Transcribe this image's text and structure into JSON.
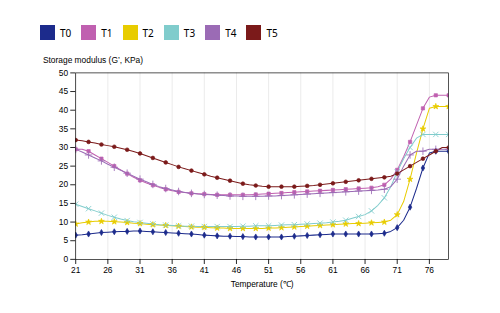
{
  "chart_data": {
    "type": "line",
    "xlabel": "Temperature (℃)",
    "ylabel": "Storage modulus (G’, KPa)",
    "xlim": [
      21,
      79
    ],
    "ylim": [
      0,
      50
    ],
    "xticks": [
      21,
      26,
      31,
      36,
      41,
      46,
      51,
      56,
      61,
      66,
      71,
      76
    ],
    "yticks": [
      0,
      5,
      10,
      15,
      20,
      25,
      30,
      35,
      40,
      45,
      50
    ],
    "grid": "x",
    "legend": "upper left",
    "x": [
      21,
      22,
      23,
      24,
      25,
      26,
      27,
      28,
      29,
      30,
      31,
      32,
      33,
      34,
      35,
      36,
      37,
      38,
      39,
      40,
      41,
      42,
      43,
      44,
      45,
      46,
      47,
      48,
      49,
      50,
      51,
      52,
      53,
      54,
      55,
      56,
      57,
      58,
      59,
      60,
      61,
      62,
      63,
      64,
      65,
      66,
      67,
      68,
      69,
      70,
      71,
      72,
      73,
      74,
      75,
      76,
      77,
      78,
      79
    ],
    "series": [
      {
        "name": "T0",
        "color": "#1C2B8C",
        "marker": "diamond",
        "values": [
          6.5,
          6.6,
          6.8,
          7.0,
          7.2,
          7.3,
          7.4,
          7.5,
          7.5,
          7.6,
          7.6,
          7.5,
          7.4,
          7.3,
          7.2,
          7.1,
          7.0,
          6.9,
          6.8,
          6.7,
          6.5,
          6.4,
          6.3,
          6.2,
          6.2,
          6.1,
          6.1,
          6.0,
          6.0,
          6.0,
          6.0,
          6.0,
          6.0,
          6.1,
          6.2,
          6.3,
          6.4,
          6.5,
          6.6,
          6.7,
          6.8,
          6.8,
          6.8,
          6.8,
          6.8,
          6.8,
          6.8,
          6.9,
          7.0,
          7.5,
          8.5,
          10.5,
          14.0,
          19.0,
          24.5,
          28.5,
          29.0,
          29.0,
          29.0
        ]
      },
      {
        "name": "T1",
        "color": "#C060B0",
        "marker": "square",
        "values": [
          29.5,
          29.5,
          29.0,
          28.0,
          27.0,
          26.0,
          25.0,
          24.0,
          23.0,
          22.0,
          21.2,
          20.5,
          19.9,
          19.3,
          18.8,
          18.4,
          18.1,
          17.9,
          17.7,
          17.6,
          17.5,
          17.4,
          17.3,
          17.3,
          17.3,
          17.3,
          17.3,
          17.3,
          17.4,
          17.5,
          17.6,
          17.7,
          17.8,
          17.9,
          18.0,
          18.1,
          18.2,
          18.3,
          18.4,
          18.5,
          18.6,
          18.7,
          18.8,
          18.9,
          19.0,
          19.1,
          19.2,
          19.5,
          20.0,
          21.5,
          24.0,
          27.5,
          31.5,
          36.0,
          40.5,
          43.5,
          44.0,
          44.0,
          44.0
        ]
      },
      {
        "name": "T2",
        "color": "#E8CC00",
        "marker": "star",
        "values": [
          9.5,
          9.8,
          10.0,
          10.2,
          10.2,
          10.2,
          10.1,
          10.0,
          9.9,
          9.7,
          9.6,
          9.4,
          9.3,
          9.2,
          9.1,
          9.0,
          8.9,
          8.8,
          8.7,
          8.6,
          8.6,
          8.5,
          8.4,
          8.4,
          8.3,
          8.3,
          8.3,
          8.3,
          8.3,
          8.3,
          8.4,
          8.4,
          8.5,
          8.6,
          8.7,
          8.8,
          8.9,
          9.0,
          9.1,
          9.2,
          9.3,
          9.4,
          9.5,
          9.6,
          9.6,
          9.7,
          9.8,
          9.9,
          10.0,
          10.5,
          12.0,
          15.5,
          21.5,
          28.5,
          35.0,
          40.5,
          41.0,
          41.0,
          41.0
        ]
      },
      {
        "name": "T3",
        "color": "#80CCCC",
        "marker": "x",
        "values": [
          14.8,
          14.2,
          13.6,
          13.0,
          12.4,
          11.8,
          11.3,
          10.8,
          10.4,
          10.1,
          9.9,
          9.7,
          9.5,
          9.3,
          9.2,
          9.1,
          9.0,
          8.9,
          8.9,
          8.8,
          8.8,
          8.8,
          8.8,
          8.8,
          8.8,
          8.8,
          8.9,
          8.9,
          9.0,
          9.0,
          9.0,
          9.1,
          9.2,
          9.3,
          9.3,
          9.4,
          9.5,
          9.6,
          9.7,
          9.8,
          10.0,
          10.2,
          10.5,
          11.0,
          11.5,
          12.0,
          13.0,
          14.5,
          16.5,
          19.5,
          23.5,
          27.0,
          30.0,
          32.5,
          33.5,
          33.5,
          33.5,
          33.5,
          33.5
        ]
      },
      {
        "name": "T4",
        "color": "#9B6BB5",
        "marker": "plus",
        "values": [
          29.5,
          28.8,
          28.0,
          27.2,
          26.4,
          25.5,
          24.7,
          23.9,
          23.1,
          22.3,
          21.5,
          20.8,
          20.1,
          19.5,
          19.0,
          18.6,
          18.2,
          17.9,
          17.7,
          17.5,
          17.4,
          17.3,
          17.2,
          17.1,
          17.0,
          17.0,
          16.9,
          16.9,
          16.9,
          16.9,
          17.0,
          17.0,
          17.1,
          17.2,
          17.3,
          17.4,
          17.5,
          17.6,
          17.7,
          17.8,
          17.9,
          18.0,
          18.1,
          18.2,
          18.3,
          18.4,
          18.5,
          18.6,
          18.8,
          19.5,
          21.5,
          25.0,
          28.0,
          29.0,
          29.0,
          29.5,
          29.5,
          29.5,
          29.5
        ]
      },
      {
        "name": "T5",
        "color": "#7B1A1A",
        "marker": "circle",
        "values": [
          32.0,
          31.8,
          31.5,
          31.2,
          30.8,
          30.5,
          30.2,
          29.8,
          29.4,
          28.9,
          28.4,
          27.8,
          27.2,
          26.6,
          26.0,
          25.4,
          24.8,
          24.3,
          23.8,
          23.3,
          22.8,
          22.3,
          21.9,
          21.5,
          21.1,
          20.7,
          20.3,
          20.0,
          19.8,
          19.6,
          19.5,
          19.5,
          19.5,
          19.5,
          19.5,
          19.6,
          19.7,
          19.8,
          20.0,
          20.2,
          20.4,
          20.6,
          20.8,
          21.0,
          21.2,
          21.4,
          21.6,
          21.8,
          22.0,
          22.3,
          23.0,
          24.0,
          25.0,
          26.0,
          27.0,
          28.0,
          29.0,
          30.0,
          30.0
        ]
      }
    ]
  }
}
